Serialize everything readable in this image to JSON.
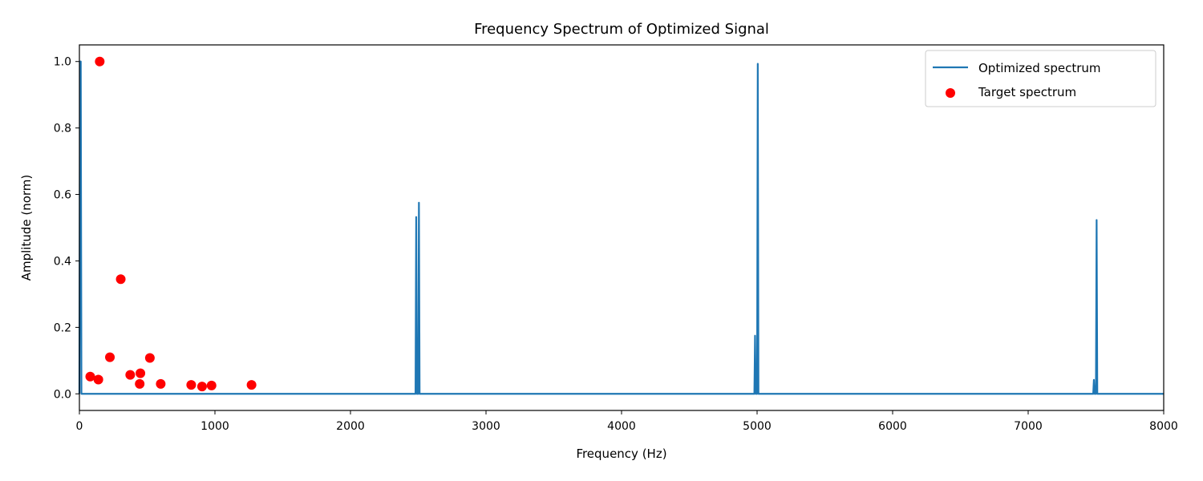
{
  "chart_data": {
    "type": "line",
    "title": "Frequency Spectrum of Optimized Signal",
    "xlabel": "Frequency (Hz)",
    "ylabel": "Amplitude (norm)",
    "xlim": [
      0,
      8000
    ],
    "ylim": [
      -0.05,
      1.05
    ],
    "xticks": [
      0,
      1000,
      2000,
      3000,
      4000,
      5000,
      6000,
      7000,
      8000
    ],
    "yticks": [
      0.0,
      0.2,
      0.4,
      0.6,
      0.8,
      1.0
    ],
    "ytick_labels": [
      "0.0",
      "0.2",
      "0.4",
      "0.6",
      "0.8",
      "1.0"
    ],
    "grid": false,
    "legend_position": "top-right",
    "series": [
      {
        "name": "Optimized spectrum",
        "kind": "line",
        "color": "#1f77b4",
        "x": [
          0,
          5,
          10,
          15,
          20,
          2475,
          2480,
          2485,
          2490,
          2495,
          2500,
          2505,
          2510,
          2515,
          2520,
          4980,
          4985,
          4990,
          4995,
          5000,
          5005,
          5010,
          5015,
          5020,
          7480,
          7485,
          7490,
          7495,
          7500,
          7505,
          7510,
          7515,
          7520,
          8000
        ],
        "y": [
          0,
          1.0,
          1.0,
          0,
          0,
          0,
          0,
          0.532,
          0,
          0,
          0,
          0.575,
          0,
          0,
          0,
          0,
          0.175,
          0,
          0,
          0,
          0.993,
          0,
          0,
          0,
          0,
          0.042,
          0,
          0,
          0,
          0.523,
          0,
          0,
          0,
          0
        ]
      },
      {
        "name": "Target spectrum",
        "kind": "scatter",
        "color": "#ff0000",
        "x": [
          80,
          140,
          150,
          225,
          305,
          375,
          445,
          450,
          520,
          600,
          825,
          905,
          975,
          1270
        ],
        "y": [
          0.052,
          0.043,
          1.0,
          0.11,
          0.345,
          0.057,
          0.03,
          0.062,
          0.108,
          0.03,
          0.027,
          0.022,
          0.025,
          0.027
        ]
      }
    ]
  }
}
